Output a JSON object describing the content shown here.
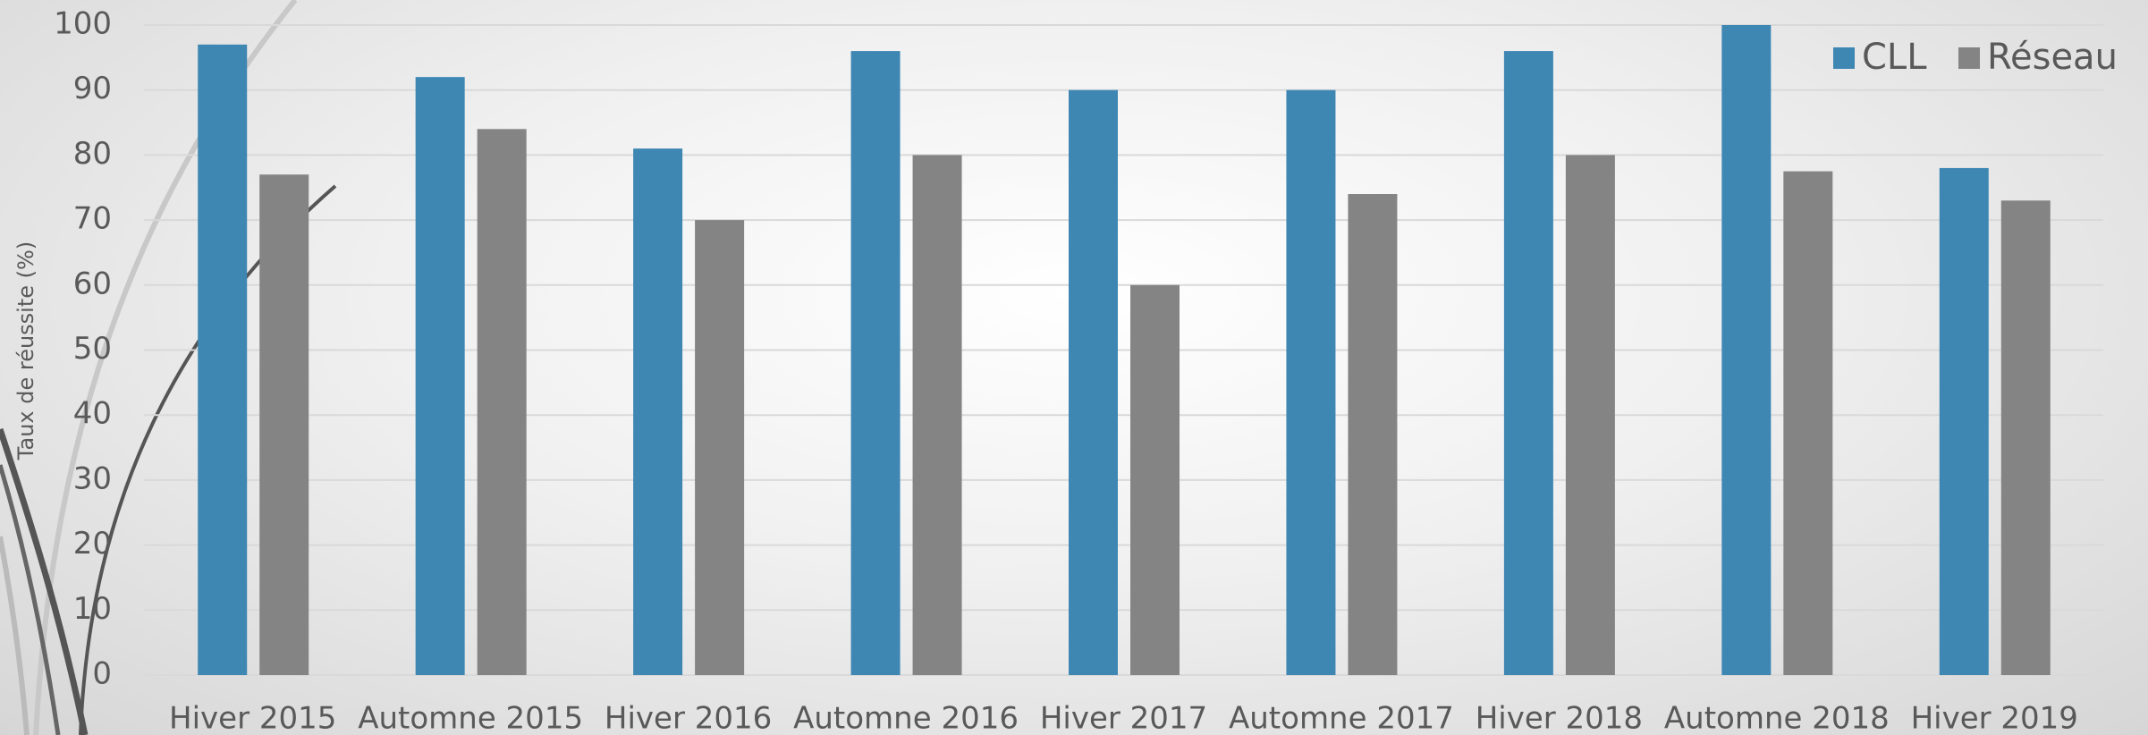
{
  "chart_data": {
    "type": "bar",
    "y_label": "Taux de réussite (%)",
    "categories": [
      "Hiver 2015",
      "Automne 2015",
      "Hiver 2016",
      "Automne 2016",
      "Hiver 2017",
      "Automne 2017",
      "Hiver 2018",
      "Automne 2018",
      "Hiver 2019"
    ],
    "series": [
      {
        "name": "CLL",
        "color": "#3f87b3",
        "values": [
          97,
          92,
          81,
          96,
          90,
          90,
          96,
          100,
          78
        ]
      },
      {
        "name": "Réseau",
        "color": "#848484",
        "values": [
          77,
          84,
          70,
          80,
          60,
          74,
          80,
          77.5,
          73
        ]
      }
    ],
    "ylim": [
      0,
      100
    ],
    "yticks": [
      0,
      10,
      20,
      30,
      40,
      50,
      60,
      70,
      80,
      90,
      100
    ],
    "grid": true,
    "legend": "top-right"
  }
}
